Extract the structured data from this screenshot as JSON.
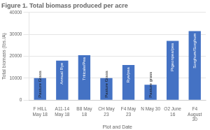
{
  "chart_data": {
    "type": "bar",
    "title": "Figure 1. Total biomass produced per acre",
    "xlabel": "Plot and Date",
    "ylabel": "Total biomass (lbs./A)",
    "categories": [
      "F HILL\nMay 18",
      "A11-14\nMay 18",
      "B8 May\n18",
      "CH May\n23",
      "F4 May\n23",
      "N May 30",
      "O2 June\n16",
      "F4\nAugust\n30"
    ],
    "values": [
      10000,
      18000,
      20500,
      10000,
      16000,
      7000,
      27000,
      31500
    ],
    "annotations": [
      "Pasture Grass",
      "Annual Rye",
      "Triticale/Pea",
      "Pasture Grass",
      "Rye/pea",
      "Pasture grass",
      "Pigeonpea/pea",
      "Sorghum/Sorghum"
    ],
    "color": "#4472C4",
    "ylim": [
      0,
      40000
    ],
    "yticks": [
      0,
      10000,
      20000,
      30000,
      40000
    ],
    "grid": true
  }
}
